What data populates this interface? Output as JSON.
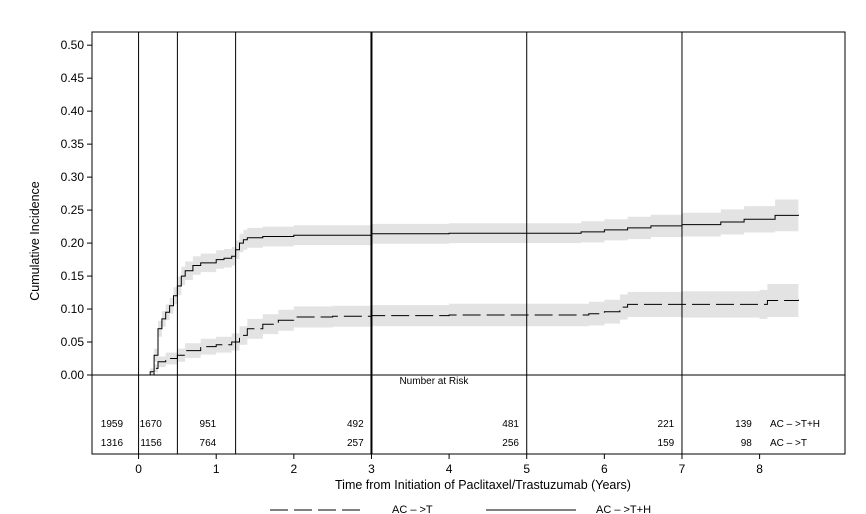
{
  "chart_data": {
    "type": "line",
    "title": "",
    "xlabel": "Time from Initiation of Paclitaxel/Trastuzumab (Years)",
    "ylabel": "Cumulative Incidence",
    "xlim": [
      -0.6,
      9.1
    ],
    "ylim": [
      0,
      0.52
    ],
    "x_ticks": [
      "0",
      "1",
      "2",
      "3",
      "4",
      "5",
      "6",
      "7",
      "8"
    ],
    "y_ticks": [
      "0.00",
      "0.05",
      "0.10",
      "0.15",
      "0.20",
      "0.25",
      "0.30",
      "0.35",
      "0.40",
      "0.45",
      "0.50"
    ],
    "grid": false,
    "confidence_band_color": "#e3e3e3",
    "line_color": "#000000",
    "vertical_reference_lines": [
      0,
      0.5,
      1.25,
      3,
      5,
      7
    ],
    "series": [
      {
        "name": "AC – >T+H",
        "style": "solid",
        "points": [
          [
            0,
            0
          ],
          [
            0.1,
            0
          ],
          [
            0.15,
            0.005
          ],
          [
            0.2,
            0.03
          ],
          [
            0.25,
            0.07
          ],
          [
            0.3,
            0.085
          ],
          [
            0.35,
            0.095
          ],
          [
            0.4,
            0.105
          ],
          [
            0.45,
            0.12
          ],
          [
            0.5,
            0.135
          ],
          [
            0.55,
            0.15
          ],
          [
            0.6,
            0.158
          ],
          [
            0.7,
            0.166
          ],
          [
            0.8,
            0.17
          ],
          [
            1.0,
            0.175
          ],
          [
            1.1,
            0.177
          ],
          [
            1.2,
            0.18
          ],
          [
            1.25,
            0.19
          ],
          [
            1.3,
            0.2
          ],
          [
            1.35,
            0.205
          ],
          [
            1.4,
            0.208
          ],
          [
            1.6,
            0.21
          ],
          [
            2.0,
            0.212
          ],
          [
            3.0,
            0.214
          ],
          [
            4.0,
            0.215
          ],
          [
            5.0,
            0.215
          ],
          [
            5.7,
            0.217
          ],
          [
            6.0,
            0.22
          ],
          [
            6.3,
            0.223
          ],
          [
            6.6,
            0.226
          ],
          [
            7.0,
            0.228
          ],
          [
            7.5,
            0.232
          ],
          [
            7.8,
            0.236
          ],
          [
            8.2,
            0.242
          ],
          [
            8.5,
            0.243
          ]
        ],
        "lower": [
          [
            0,
            0
          ],
          [
            0.1,
            0
          ],
          [
            0.15,
            0
          ],
          [
            0.2,
            0.02
          ],
          [
            0.25,
            0.058
          ],
          [
            0.3,
            0.073
          ],
          [
            0.35,
            0.083
          ],
          [
            0.4,
            0.093
          ],
          [
            0.45,
            0.107
          ],
          [
            0.5,
            0.121
          ],
          [
            0.55,
            0.136
          ],
          [
            0.6,
            0.144
          ],
          [
            0.7,
            0.152
          ],
          [
            0.8,
            0.156
          ],
          [
            1.0,
            0.161
          ],
          [
            1.1,
            0.163
          ],
          [
            1.2,
            0.166
          ],
          [
            1.25,
            0.176
          ],
          [
            1.3,
            0.186
          ],
          [
            1.35,
            0.19
          ],
          [
            1.4,
            0.193
          ],
          [
            1.6,
            0.195
          ],
          [
            2.0,
            0.197
          ],
          [
            3.0,
            0.199
          ],
          [
            4.0,
            0.2
          ],
          [
            5.0,
            0.2
          ],
          [
            5.7,
            0.201
          ],
          [
            6.0,
            0.204
          ],
          [
            6.3,
            0.206
          ],
          [
            6.6,
            0.209
          ],
          [
            7.0,
            0.21
          ],
          [
            7.5,
            0.213
          ],
          [
            7.8,
            0.216
          ],
          [
            8.2,
            0.218
          ],
          [
            8.5,
            0.219
          ]
        ],
        "upper": [
          [
            0,
            0
          ],
          [
            0.1,
            0
          ],
          [
            0.15,
            0.01
          ],
          [
            0.2,
            0.04
          ],
          [
            0.25,
            0.082
          ],
          [
            0.3,
            0.097
          ],
          [
            0.35,
            0.107
          ],
          [
            0.4,
            0.117
          ],
          [
            0.45,
            0.133
          ],
          [
            0.5,
            0.149
          ],
          [
            0.55,
            0.164
          ],
          [
            0.6,
            0.172
          ],
          [
            0.7,
            0.18
          ],
          [
            0.8,
            0.184
          ],
          [
            1.0,
            0.189
          ],
          [
            1.1,
            0.191
          ],
          [
            1.2,
            0.194
          ],
          [
            1.25,
            0.204
          ],
          [
            1.3,
            0.214
          ],
          [
            1.35,
            0.22
          ],
          [
            1.4,
            0.223
          ],
          [
            1.6,
            0.225
          ],
          [
            2.0,
            0.227
          ],
          [
            3.0,
            0.229
          ],
          [
            4.0,
            0.23
          ],
          [
            5.0,
            0.23
          ],
          [
            5.7,
            0.233
          ],
          [
            6.0,
            0.236
          ],
          [
            6.3,
            0.24
          ],
          [
            6.6,
            0.243
          ],
          [
            7.0,
            0.246
          ],
          [
            7.5,
            0.251
          ],
          [
            7.8,
            0.256
          ],
          [
            8.2,
            0.266
          ],
          [
            8.5,
            0.267
          ]
        ]
      },
      {
        "name": "AC – >T",
        "style": "dashed",
        "points": [
          [
            0,
            0
          ],
          [
            0.15,
            0
          ],
          [
            0.2,
            0.01
          ],
          [
            0.25,
            0.02
          ],
          [
            0.35,
            0.025
          ],
          [
            0.5,
            0.03
          ],
          [
            0.6,
            0.037
          ],
          [
            0.8,
            0.043
          ],
          [
            1.0,
            0.046
          ],
          [
            1.2,
            0.05
          ],
          [
            1.3,
            0.06
          ],
          [
            1.4,
            0.07
          ],
          [
            1.6,
            0.077
          ],
          [
            1.8,
            0.083
          ],
          [
            2.0,
            0.088
          ],
          [
            2.5,
            0.089
          ],
          [
            3.0,
            0.09
          ],
          [
            4.0,
            0.091
          ],
          [
            5.0,
            0.091
          ],
          [
            5.8,
            0.093
          ],
          [
            6.0,
            0.096
          ],
          [
            6.2,
            0.103
          ],
          [
            6.3,
            0.107
          ],
          [
            7.0,
            0.107
          ],
          [
            8.0,
            0.107
          ],
          [
            8.1,
            0.113
          ],
          [
            8.5,
            0.114
          ]
        ],
        "lower": [
          [
            0,
            0
          ],
          [
            0.15,
            0
          ],
          [
            0.2,
            0.004
          ],
          [
            0.25,
            0.012
          ],
          [
            0.35,
            0.016
          ],
          [
            0.5,
            0.02
          ],
          [
            0.6,
            0.026
          ],
          [
            0.8,
            0.031
          ],
          [
            1.0,
            0.034
          ],
          [
            1.2,
            0.037
          ],
          [
            1.3,
            0.046
          ],
          [
            1.4,
            0.055
          ],
          [
            1.6,
            0.062
          ],
          [
            1.8,
            0.067
          ],
          [
            2.0,
            0.072
          ],
          [
            2.5,
            0.073
          ],
          [
            3.0,
            0.074
          ],
          [
            4.0,
            0.074
          ],
          [
            5.0,
            0.074
          ],
          [
            5.8,
            0.075
          ],
          [
            6.0,
            0.078
          ],
          [
            6.2,
            0.084
          ],
          [
            6.3,
            0.088
          ],
          [
            7.0,
            0.087
          ],
          [
            8.0,
            0.085
          ],
          [
            8.1,
            0.088
          ],
          [
            8.5,
            0.086
          ]
        ],
        "upper": [
          [
            0,
            0
          ],
          [
            0.15,
            0
          ],
          [
            0.2,
            0.016
          ],
          [
            0.25,
            0.028
          ],
          [
            0.35,
            0.034
          ],
          [
            0.5,
            0.04
          ],
          [
            0.6,
            0.048
          ],
          [
            0.8,
            0.055
          ],
          [
            1.0,
            0.058
          ],
          [
            1.2,
            0.063
          ],
          [
            1.3,
            0.074
          ],
          [
            1.4,
            0.085
          ],
          [
            1.6,
            0.092
          ],
          [
            1.8,
            0.099
          ],
          [
            2.0,
            0.104
          ],
          [
            2.5,
            0.105
          ],
          [
            3.0,
            0.106
          ],
          [
            4.0,
            0.108
          ],
          [
            5.0,
            0.108
          ],
          [
            5.8,
            0.111
          ],
          [
            6.0,
            0.114
          ],
          [
            6.2,
            0.122
          ],
          [
            6.3,
            0.126
          ],
          [
            7.0,
            0.127
          ],
          [
            8.0,
            0.129
          ],
          [
            8.1,
            0.138
          ],
          [
            8.5,
            0.142
          ]
        ]
      }
    ],
    "risk_table": {
      "title": "Number at Risk",
      "times": [
        -0.2,
        0.3,
        1.0,
        2.9,
        4.9,
        6.9,
        7.9
      ],
      "rows": [
        {
          "label": "AC – >T+H",
          "counts": [
            "1959",
            "1670",
            "951",
            "492",
            "481",
            "221",
            "139"
          ]
        },
        {
          "label": "AC – >T",
          "counts": [
            "1316",
            "1156",
            "764",
            "257",
            "256",
            "159",
            "98"
          ]
        }
      ]
    },
    "legend": {
      "placement": "bottom",
      "items": [
        {
          "label": "AC – >T",
          "style": "dashed"
        },
        {
          "label": "AC – >T+H",
          "style": "solid"
        }
      ]
    }
  }
}
